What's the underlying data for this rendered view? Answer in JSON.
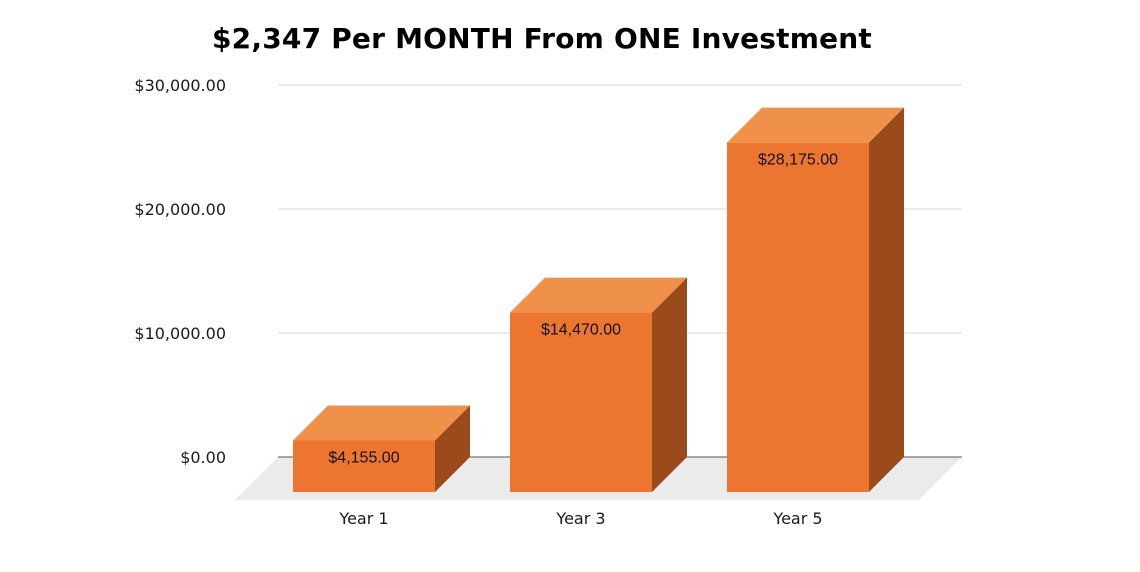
{
  "chart_data": {
    "type": "bar",
    "title": "$2,347 Per MONTH From ONE Investment",
    "categories": [
      "Year 1",
      "Year 3",
      "Year 5"
    ],
    "values": [
      4155,
      14470,
      28175
    ],
    "data_labels": [
      "$4,155.00",
      "$14,470.00",
      "$28,175.00"
    ],
    "ylim": [
      0,
      30000
    ],
    "yticks": [
      0,
      10000,
      20000,
      30000
    ],
    "ytick_labels": [
      "$0.00",
      "$10,000.00",
      "$20,000.00",
      "$30,000.00"
    ],
    "xlabel": "",
    "ylabel": "",
    "grid": true,
    "style": "3d-column",
    "colors": {
      "front": "#ec7630",
      "top": "#f0914a",
      "side": "#9b4a1c",
      "floor": "#ebebeb",
      "grid": "#d9d9d9",
      "baseline": "#555555"
    }
  }
}
